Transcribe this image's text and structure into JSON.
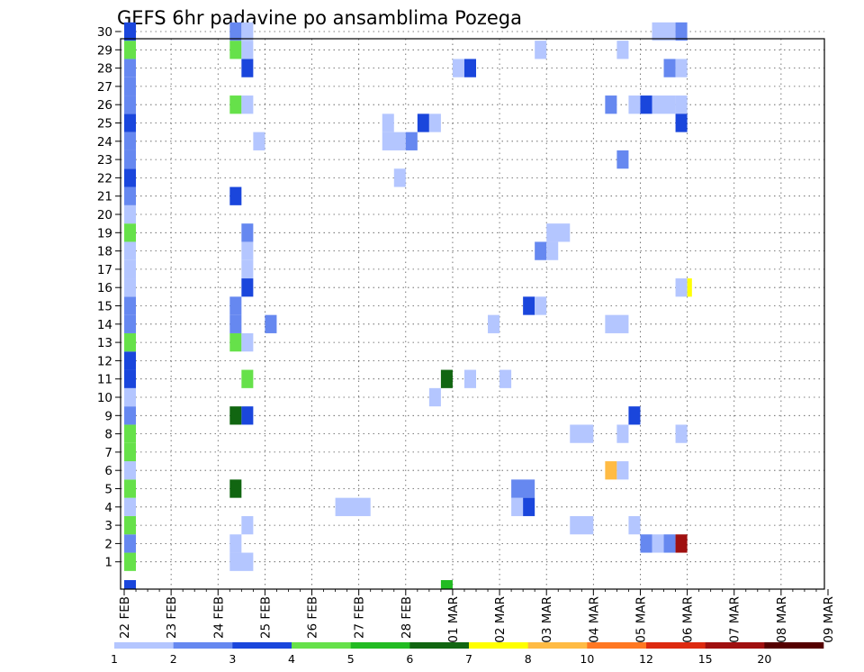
{
  "title": "GEFS 6hr padavine po ansamblima Pozega",
  "chart_data": {
    "type": "heatmap",
    "title": "GEFS 6hr padavine po ansamblima Pozega",
    "x_tick_labels": [
      "22 FEB",
      "23 FEB",
      "24 FEB",
      "25 FEB",
      "26 FEB",
      "27 FEB",
      "28 FEB",
      "01 MAR",
      "02 MAR",
      "03 MAR",
      "04 MAR",
      "05 MAR",
      "06 MAR",
      "07 MAR",
      "08 MAR",
      "09 MAR"
    ],
    "y_tick_labels": [
      "1",
      "2",
      "3",
      "4",
      "5",
      "6",
      "7",
      "8",
      "9",
      "10",
      "11",
      "12",
      "13",
      "14",
      "15",
      "16",
      "17",
      "18",
      "19",
      "20",
      "21",
      "22",
      "23",
      "24",
      "25",
      "26",
      "27",
      "28",
      "29",
      "30"
    ],
    "xlim_slots": [
      0,
      60
    ],
    "ylim_members": [
      0,
      30
    ],
    "grid": true,
    "colorbar_ticks": [
      "1",
      "2",
      "3",
      "4",
      "5",
      "6",
      "7",
      "8",
      "10",
      "12",
      "15",
      "20"
    ],
    "colorbar_colors": [
      "#b4c6ff",
      "#6688f0",
      "#1a46dc",
      "#66e14a",
      "#22bb22",
      "#116611",
      "#ffff00",
      "#ffbb44",
      "#ff7722",
      "#dd2a10",
      "#a01010",
      "#550000"
    ],
    "cells_note": "each cell: [start_slot, end_slot, member, colour_class]",
    "cells": [
      [
        0,
        1,
        1,
        4
      ],
      [
        0,
        1,
        2,
        2
      ],
      [
        0,
        1,
        3,
        4
      ],
      [
        0,
        1,
        4,
        1
      ],
      [
        0,
        1,
        5,
        4
      ],
      [
        0,
        1,
        6,
        1
      ],
      [
        0,
        1,
        7,
        4
      ],
      [
        0,
        1,
        8,
        4
      ],
      [
        0,
        1,
        9,
        2
      ],
      [
        0,
        1,
        10,
        1
      ],
      [
        0,
        1,
        11,
        3
      ],
      [
        0,
        1,
        12,
        3
      ],
      [
        0,
        1,
        13,
        4
      ],
      [
        0,
        1,
        14,
        2
      ],
      [
        0,
        1,
        15,
        2
      ],
      [
        0,
        1,
        16,
        1
      ],
      [
        0,
        1,
        17,
        1
      ],
      [
        0,
        1,
        18,
        1
      ],
      [
        0,
        1,
        19,
        4
      ],
      [
        0,
        1,
        20,
        1
      ],
      [
        0,
        1,
        21,
        2
      ],
      [
        0,
        1,
        22,
        3
      ],
      [
        0,
        1,
        23,
        2
      ],
      [
        0,
        1,
        24,
        2
      ],
      [
        0,
        1,
        25,
        3
      ],
      [
        0,
        1,
        26,
        2
      ],
      [
        0,
        1,
        27,
        2
      ],
      [
        0,
        1,
        28,
        2
      ],
      [
        0,
        1,
        29,
        4
      ],
      [
        0,
        1,
        30,
        3
      ],
      [
        0,
        1,
        0,
        3
      ],
      [
        9,
        11,
        1,
        1
      ],
      [
        9,
        10,
        2,
        1
      ],
      [
        10,
        11,
        3,
        1
      ],
      [
        9,
        10,
        5,
        6
      ],
      [
        9,
        10,
        9,
        6
      ],
      [
        10,
        11,
        9,
        3
      ],
      [
        10,
        11,
        11,
        4
      ],
      [
        9,
        10,
        13,
        4
      ],
      [
        10,
        11,
        13,
        1
      ],
      [
        9,
        10,
        14,
        2
      ],
      [
        9,
        10,
        15,
        2
      ],
      [
        10,
        11,
        16,
        3
      ],
      [
        10,
        11,
        17,
        1
      ],
      [
        10,
        11,
        18,
        1
      ],
      [
        10,
        11,
        19,
        2
      ],
      [
        9,
        10,
        21,
        3
      ],
      [
        9,
        10,
        26,
        4
      ],
      [
        10,
        11,
        26,
        1
      ],
      [
        10,
        11,
        28,
        3
      ],
      [
        9,
        10,
        29,
        4
      ],
      [
        10,
        11,
        29,
        1
      ],
      [
        9,
        10,
        30,
        2
      ],
      [
        10,
        11,
        30,
        1
      ],
      [
        11,
        12,
        24,
        1
      ],
      [
        12,
        13,
        14,
        2
      ],
      [
        18,
        21,
        4,
        1
      ],
      [
        22,
        24,
        24,
        1
      ],
      [
        22,
        23,
        25,
        1
      ],
      [
        24,
        25,
        24,
        2
      ],
      [
        23,
        24,
        22,
        1
      ],
      [
        25,
        26,
        25,
        3
      ],
      [
        26,
        27,
        25,
        1
      ],
      [
        26,
        27,
        10,
        1
      ],
      [
        27,
        28,
        11,
        6
      ],
      [
        27,
        28,
        0,
        5
      ],
      [
        29,
        30,
        11,
        1
      ],
      [
        28,
        29,
        28,
        1
      ],
      [
        29,
        30,
        28,
        3
      ],
      [
        31,
        32,
        14,
        1
      ],
      [
        32,
        33,
        11,
        1
      ],
      [
        33,
        34,
        4,
        1
      ],
      [
        33,
        35,
        5,
        2
      ],
      [
        34,
        35,
        4,
        3
      ],
      [
        34,
        35,
        15,
        3
      ],
      [
        35,
        36,
        15,
        1
      ],
      [
        35,
        36,
        18,
        2
      ],
      [
        36,
        37,
        18,
        1
      ],
      [
        36,
        38,
        19,
        1
      ],
      [
        35,
        36,
        29,
        1
      ],
      [
        38,
        40,
        3,
        1
      ],
      [
        38,
        40,
        8,
        1
      ],
      [
        41,
        42,
        6,
        8
      ],
      [
        42,
        43,
        6,
        1
      ],
      [
        41,
        43,
        14,
        1
      ],
      [
        41,
        42,
        26,
        2
      ],
      [
        42,
        43,
        23,
        2
      ],
      [
        42,
        43,
        29,
        1
      ],
      [
        42,
        43,
        8,
        1
      ],
      [
        43,
        44,
        3,
        1
      ],
      [
        43,
        44,
        9,
        3
      ],
      [
        43,
        44,
        26,
        1
      ],
      [
        44,
        45,
        26,
        3
      ],
      [
        45,
        47,
        26,
        1
      ],
      [
        47,
        48,
        26,
        1
      ],
      [
        44,
        45,
        2,
        2
      ],
      [
        45,
        46,
        2,
        1
      ],
      [
        46,
        47,
        2,
        2
      ],
      [
        47,
        48,
        2,
        11
      ],
      [
        45,
        47,
        30,
        1
      ],
      [
        47,
        48,
        30,
        2
      ],
      [
        46,
        47,
        28,
        2
      ],
      [
        47,
        48,
        28,
        1
      ],
      [
        47,
        48,
        25,
        3
      ],
      [
        47,
        48,
        16,
        1
      ],
      [
        48,
        48.4,
        16,
        7
      ],
      [
        47,
        48,
        8,
        1
      ]
    ]
  }
}
